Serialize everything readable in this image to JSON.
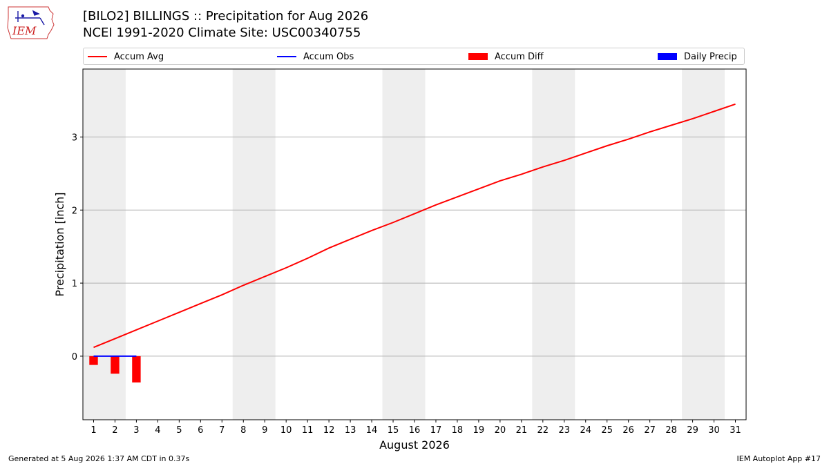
{
  "header": {
    "title_line1": "[BILO2] BILLINGS :: Precipitation for Aug 2026",
    "title_line2": "NCEI 1991-2020 Climate Site: USC00340755",
    "logo_text": "IEM"
  },
  "footer": {
    "left": "Generated at 5 Aug 2026 1:37 AM CDT in 0.37s",
    "right": "IEM Autoplot App #17"
  },
  "legend": [
    {
      "label": "Accum Avg",
      "color": "#ff0000",
      "kind": "line"
    },
    {
      "label": "Accum Obs",
      "color": "#0000ff",
      "kind": "line"
    },
    {
      "label": "Accum Diff",
      "color": "#ff0000",
      "kind": "box"
    },
    {
      "label": "Daily Precip",
      "color": "#0000ff",
      "kind": "box"
    }
  ],
  "chart_data": {
    "type": "line",
    "xlabel": "August 2026",
    "ylabel": "Precipitation [inch]",
    "xlim": [
      0.5,
      31.5
    ],
    "ylim": [
      -0.87,
      3.93
    ],
    "yticks": [
      0,
      1,
      2,
      3
    ],
    "xticks": [
      1,
      2,
      3,
      4,
      5,
      6,
      7,
      8,
      9,
      10,
      11,
      12,
      13,
      14,
      15,
      16,
      17,
      18,
      19,
      20,
      21,
      22,
      23,
      24,
      25,
      26,
      27,
      28,
      29,
      30,
      31
    ],
    "grid": "y",
    "weekend_shading": [
      [
        1,
        2
      ],
      [
        8,
        9
      ],
      [
        15,
        16
      ],
      [
        22,
        23
      ],
      [
        29,
        30
      ]
    ],
    "shading_color": "#eeeeee",
    "series": [
      {
        "name": "Accum Avg",
        "type": "line",
        "color": "#ff0000",
        "x": [
          1,
          2,
          3,
          4,
          5,
          6,
          7,
          8,
          9,
          10,
          11,
          12,
          13,
          14,
          15,
          16,
          17,
          18,
          19,
          20,
          21,
          22,
          23,
          24,
          25,
          26,
          27,
          28,
          29,
          30,
          31
        ],
        "values": [
          0.12,
          0.24,
          0.36,
          0.48,
          0.6,
          0.72,
          0.84,
          0.97,
          1.09,
          1.21,
          1.34,
          1.48,
          1.6,
          1.72,
          1.83,
          1.95,
          2.07,
          2.18,
          2.29,
          2.4,
          2.49,
          2.59,
          2.68,
          2.78,
          2.88,
          2.97,
          3.07,
          3.16,
          3.25,
          3.35,
          3.45
        ]
      },
      {
        "name": "Accum Obs",
        "type": "line",
        "color": "#0000ff",
        "x": [
          1,
          2,
          3
        ],
        "values": [
          0.0,
          0.0,
          0.0
        ]
      },
      {
        "name": "Accum Diff",
        "type": "bar",
        "color": "#ff0000",
        "x": [
          1,
          2,
          3
        ],
        "values": [
          -0.12,
          -0.24,
          -0.36
        ]
      },
      {
        "name": "Daily Precip",
        "type": "bar",
        "color": "#0000ff",
        "x": [
          1,
          2,
          3
        ],
        "values": [
          0.0,
          0.0,
          0.0
        ]
      }
    ]
  }
}
